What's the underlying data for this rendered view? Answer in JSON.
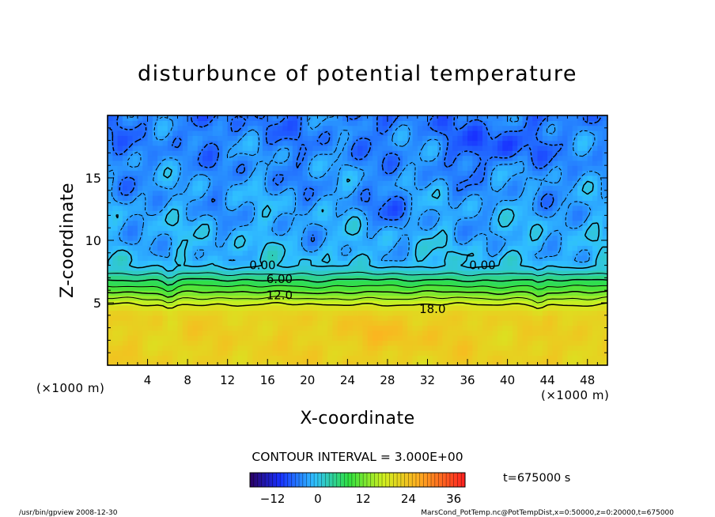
{
  "chart_data": {
    "type": "contour",
    "title": "disturbunce of potential temperature",
    "xlabel": "X-coordinate",
    "ylabel": "Z-coordinate",
    "x_unit": "(×1000 m)",
    "xlim": [
      0,
      50
    ],
    "ylim": [
      0,
      20
    ],
    "x_ticks": [
      4,
      8,
      12,
      16,
      20,
      24,
      28,
      32,
      36,
      40,
      44,
      48
    ],
    "y_ticks": [
      5,
      10,
      15
    ],
    "contour_interval_text": "CONTOUR INTERVAL = 3.000E+00",
    "contour_labels": [
      {
        "text": "0.00",
        "x": 15.5,
        "z": 8.0
      },
      {
        "text": "0.00",
        "x": 37.5,
        "z": 8.0
      },
      {
        "text": "6.00",
        "x": 17.2,
        "z": 6.9
      },
      {
        "text": "12.0",
        "x": 17.2,
        "z": 5.6
      },
      {
        "text": "18.0",
        "x": 32.5,
        "z": 4.5
      }
    ],
    "contour_levels": [
      -6,
      -3,
      0,
      3,
      6,
      9,
      12,
      15,
      18
    ],
    "color_range": [
      -18,
      39
    ],
    "colorbar_ticks": [
      -12,
      0,
      12,
      24,
      36
    ],
    "colors": {
      "min": "#2a0060",
      "blue": "#1e60ff",
      "cyan": "#30c0ff",
      "green": "#30e040",
      "yellow": "#f0f020",
      "max": "#ff3020"
    },
    "time_label": "t=675000 s"
  },
  "footer": {
    "left": "/usr/bin/gpview   2008-12-30",
    "right": "MarsCond_PotTemp.nc@PotTempDist,x=0:50000,z=0:20000,t=675000"
  }
}
